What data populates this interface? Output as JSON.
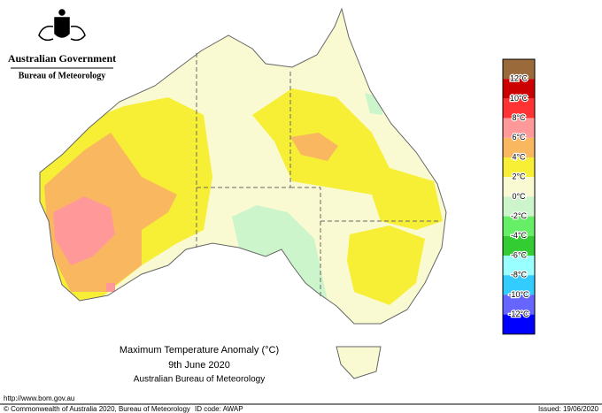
{
  "header": {
    "government": "Australian Government",
    "agency": "Bureau of Meteorology"
  },
  "title": {
    "line1": "Maximum Temperature Anomaly (°C)",
    "line2": "9th June 2020",
    "line3": "Australian Bureau of Meteorology"
  },
  "legend": {
    "colors": [
      "#9b6a3a",
      "#cc0000",
      "#ff3333",
      "#ff9999",
      "#f9b75f",
      "#f7ee36",
      "#fafad2",
      "#ccf5cc",
      "#66ee66",
      "#33cc33",
      "#99ffff",
      "#33ccff",
      "#6666ff",
      "#0000ff"
    ],
    "labels": [
      "12°C",
      "10°C",
      "8°C",
      "6°C",
      "4°C",
      "2°C",
      "0°C",
      "-2°C",
      "-4°C",
      "-6°C",
      "-8°C",
      "-10°C",
      "-12°C"
    ]
  },
  "footer": {
    "url": "http://www.bom.gov.au",
    "copyright": "© Commonwealth of Australia 2020, Bureau of Meteorology",
    "id_code": "ID code: AWAP",
    "issued": "Issued: 19/06/2020"
  }
}
